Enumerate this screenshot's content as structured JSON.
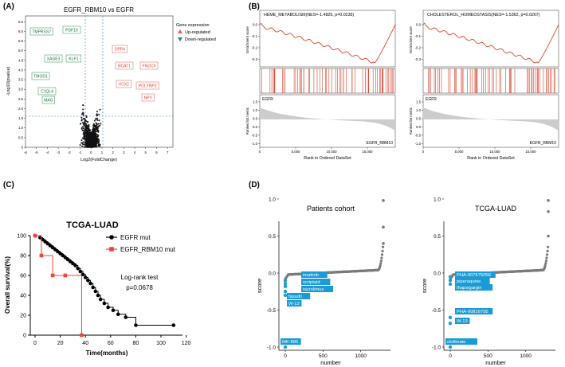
{
  "panels": {
    "A": {
      "label": "(A)",
      "title": "EGFR_RBM10 vs EGFR",
      "xlabel": "Log2(FoldChange)",
      "ylabel": "-Log10(pvalue)",
      "legend_title": "Gene expression",
      "legend_up": "Up-regulated",
      "legend_down": "Down-regulated",
      "colors": {
        "up": "#e8604c",
        "down": "#2e8b57",
        "ns": "#111111",
        "threshold": "#3a7bd5"
      },
      "xticks": [
        "-6",
        "-5",
        "-4",
        "-3",
        "-2",
        "-1",
        "0",
        "1",
        "2",
        "3",
        "4",
        "5",
        "6",
        "7"
      ],
      "yticks": [
        "0",
        "0.5",
        "1.0",
        "1.5",
        "2.0",
        "2.5",
        "3.0",
        "3.5",
        "4.0",
        "4.5",
        "5.0",
        "5.5",
        "6.0",
        "6.5"
      ],
      "genes_down": [
        "TMPRSS7",
        "FGF19",
        "XAGE3",
        "KLF1",
        "TMOD1",
        "C1QL4",
        "MAG"
      ],
      "genes_up": [
        "DPP4",
        "BCAT1",
        "FNDC9",
        "VCX2",
        "POLYRP3",
        "NPY"
      ]
    },
    "B": {
      "label": "(B)",
      "plots": [
        {
          "title": "HEME_METABOLISM(NES=-1.4825, p=0.0235)"
        },
        {
          "title": "CHOLESTEROL_HOMEOSTASIS(NES=-1.5362, p=0.0267)"
        }
      ],
      "es_ylabel": "Enrichment score",
      "rank_ylabel": "Ranked list metric",
      "es_ticks": [
        "0.0",
        "-0.1",
        "-0.2",
        "-0.3"
      ],
      "rank_ticks": [
        "1.5",
        "1.0",
        "0.5",
        "0.0",
        "-0.5",
        "-1.0"
      ],
      "xticks": [
        "0",
        "5,000",
        "10,000",
        "15,000"
      ],
      "xlabel": "Rank in Ordered DataSet",
      "top_label": "EGFR",
      "bottom_label": "EGFR_RBM10",
      "colors": {
        "curve": "#e0452b",
        "hits": "#d9452f",
        "fill": "#cccccc"
      }
    },
    "C": {
      "label": "(C)",
      "title": "TCGA-LUAD",
      "ylabel": "Overall survival(%)",
      "xlabel": "Time(months)",
      "xticks": [
        "0",
        "20",
        "40",
        "60",
        "80",
        "100",
        "120"
      ],
      "yticks": [
        "0",
        "20",
        "40",
        "60",
        "80",
        "100"
      ],
      "legend": [
        {
          "name": "EGFR mut",
          "color": "#000000"
        },
        {
          "name": "EGFR_RBM10 mut",
          "color": "#e8473b"
        }
      ],
      "test_label": "Log-rank test",
      "p_label": "p=0.0678"
    },
    "D": {
      "label": "(D)",
      "plots": [
        {
          "title": "Patients cohort",
          "drugs": [
            "imatinib",
            "scriptaid",
            "tacrolimus",
            "fasudil",
            "W-13",
            "MK-886"
          ]
        },
        {
          "title": "TCGA-LUAD",
          "drugs": [
            "PHA-00767505E",
            "piperaquine",
            "thapsigargin",
            "PHA-00816795",
            "W-13",
            "clofibrate"
          ]
        }
      ],
      "ylabel": "score",
      "xlabel": "number",
      "yticks": [
        "1.0",
        "0.5",
        "0.0",
        "-0.5",
        "-1.0"
      ],
      "xticks": [
        "0",
        "500",
        "1000"
      ],
      "colors": {
        "points": "#7a7a7a",
        "highlight": "#1f9bcf",
        "label_bg": "#1a9ad6"
      }
    }
  }
}
